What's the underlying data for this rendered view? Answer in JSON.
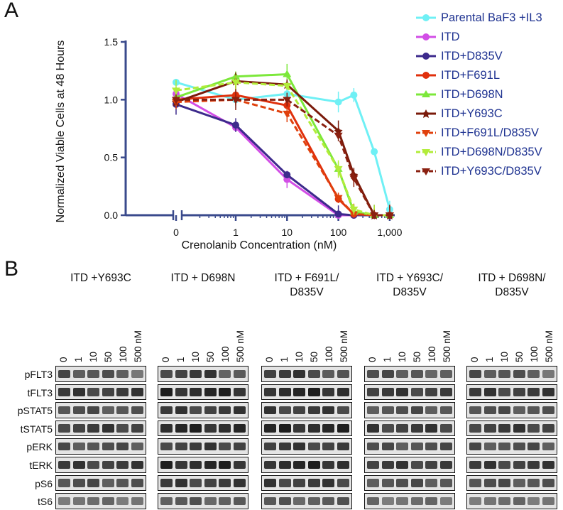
{
  "panel_a_label": "A",
  "panel_b_label": "B",
  "chart_data": {
    "type": "line",
    "title": "",
    "xlabel": "Crenolanib Concentration (nM)",
    "ylabel": "Normalized Viable Cells at 48 Hours",
    "xscale": "log (with 0 on broken axis)",
    "x": [
      0,
      1,
      10,
      100,
      200,
      500,
      1000
    ],
    "xticks": [
      "0",
      "1",
      "10",
      "100",
      "1,000"
    ],
    "yticks": [
      "0.0",
      "0.5",
      "1.0",
      "1.5"
    ],
    "ylim": [
      0,
      1.5
    ],
    "legend_position": "right",
    "series": [
      {
        "name": "Parental BaF3 +IL3",
        "color": "#6ff0f5",
        "dash": false,
        "marker": "circle",
        "values": [
          1.15,
          1.0,
          1.05,
          0.98,
          1.04,
          0.55,
          0.05
        ]
      },
      {
        "name": "ITD",
        "color": "#d24ee6",
        "dash": false,
        "marker": "circle",
        "values": [
          1.05,
          0.76,
          0.31,
          0.0,
          0.0,
          0.0,
          0.0
        ]
      },
      {
        "name": "ITD+D835V",
        "color": "#3d2a8c",
        "dash": false,
        "marker": "circle",
        "values": [
          0.96,
          0.78,
          0.35,
          0.01,
          0.0,
          0.0,
          0.0
        ]
      },
      {
        "name": "ITD+F691L",
        "color": "#e0300c",
        "dash": false,
        "marker": "circle",
        "values": [
          1.0,
          1.04,
          0.95,
          0.14,
          0.01,
          0.0,
          0.0
        ]
      },
      {
        "name": "ITD+D698N",
        "color": "#7ce83a",
        "dash": false,
        "marker": "triangle-up",
        "values": [
          1.02,
          1.2,
          1.22,
          0.4,
          0.03,
          0.0,
          0.0
        ]
      },
      {
        "name": "ITD+Y693C",
        "color": "#7a1a0a",
        "dash": false,
        "marker": "star",
        "values": [
          0.98,
          1.16,
          1.13,
          0.73,
          0.35,
          0.0,
          0.0
        ]
      },
      {
        "name": "ITD+F691L/D835V",
        "color": "#e0400c",
        "dash": true,
        "marker": "triangle-down",
        "values": [
          0.98,
          1.0,
          0.88,
          0.15,
          0.01,
          0.0,
          0.0
        ]
      },
      {
        "name": "ITD+D698N/D835V",
        "color": "#b2ec3a",
        "dash": true,
        "marker": "triangle-down",
        "values": [
          1.08,
          1.15,
          1.12,
          0.4,
          0.05,
          0.0,
          0.0
        ]
      },
      {
        "name": "ITD+Y693C/D835V",
        "color": "#8a2010",
        "dash": true,
        "marker": "triangle-down",
        "values": [
          1.0,
          1.0,
          1.0,
          0.69,
          0.32,
          0.0,
          0.0
        ]
      }
    ]
  },
  "blots": {
    "lanes": [
      "0",
      "1",
      "10",
      "50",
      "100",
      "500 nM"
    ],
    "rows": [
      "pFLT3",
      "tFLT3",
      "pSTAT5",
      "tSTAT5",
      "pERK",
      "tERK",
      "pS6",
      "tS6"
    ],
    "panels": [
      {
        "title_line1": "ITD +Y693C",
        "title_line2": ""
      },
      {
        "title_line1": "ITD + D698N",
        "title_line2": ""
      },
      {
        "title_line1": "ITD + F691L/",
        "title_line2": "D835V"
      },
      {
        "title_line1": "ITD + Y693C/",
        "title_line2": "D835V"
      },
      {
        "title_line1": "ITD + D698N/",
        "title_line2": "D835V"
      }
    ]
  }
}
